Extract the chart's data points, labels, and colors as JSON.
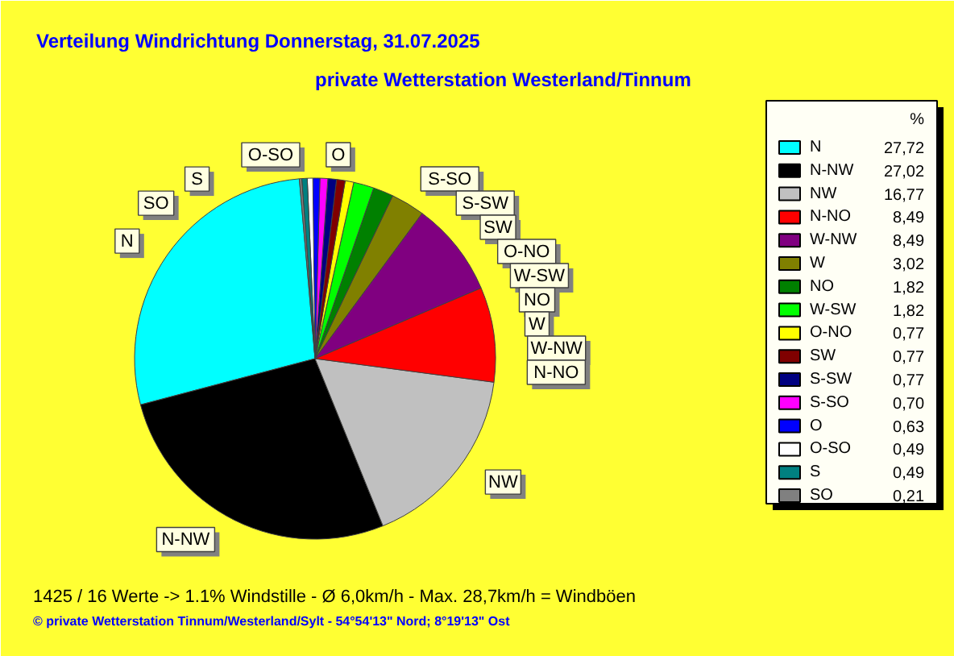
{
  "chart_data": {
    "type": "pie",
    "title": "Verteilung Windrichtung   Donnerstag, 31.07.2025",
    "subtitle": "private Wetterstation Westerland/Tinnum",
    "categories": [
      "N",
      "N-NW",
      "NW",
      "N-NO",
      "W-NW",
      "W",
      "NO",
      "W-SW",
      "O-NO",
      "SW",
      "S-SW",
      "S-SO",
      "O",
      "O-SO",
      "S",
      "SO"
    ],
    "values": [
      27.72,
      27.02,
      16.77,
      8.49,
      8.49,
      3.02,
      1.82,
      1.82,
      0.77,
      0.77,
      0.77,
      0.7,
      0.63,
      0.49,
      0.49,
      0.21
    ],
    "value_labels": [
      "27,72",
      "27,02",
      "16,77",
      "8,49",
      "8,49",
      "3,02",
      "1,82",
      "1,82",
      "0,77",
      "0,77",
      "0,77",
      "0,70",
      "0,63",
      "0,49",
      "0,49",
      "0,21"
    ],
    "colors": [
      "#00ffff",
      "#000000",
      "#c0c0c0",
      "#ff0000",
      "#800080",
      "#808000",
      "#008000",
      "#00ff00",
      "#ffff00",
      "#800000",
      "#000080",
      "#ff00ff",
      "#0000ff",
      "#ffffff",
      "#008080",
      "#808080"
    ],
    "legend": "right",
    "legend_title": "%",
    "annotations": [
      "1425 / 16 Werte  -> 1.1% Windstille   -   Ø 6,0km/h  -  Max. 28,7km/h = Windböen",
      "© private Wetterstation Tinnum/Westerland/Sylt   -   54°54'13\" Nord; 8°19'13\" Ost"
    ]
  }
}
